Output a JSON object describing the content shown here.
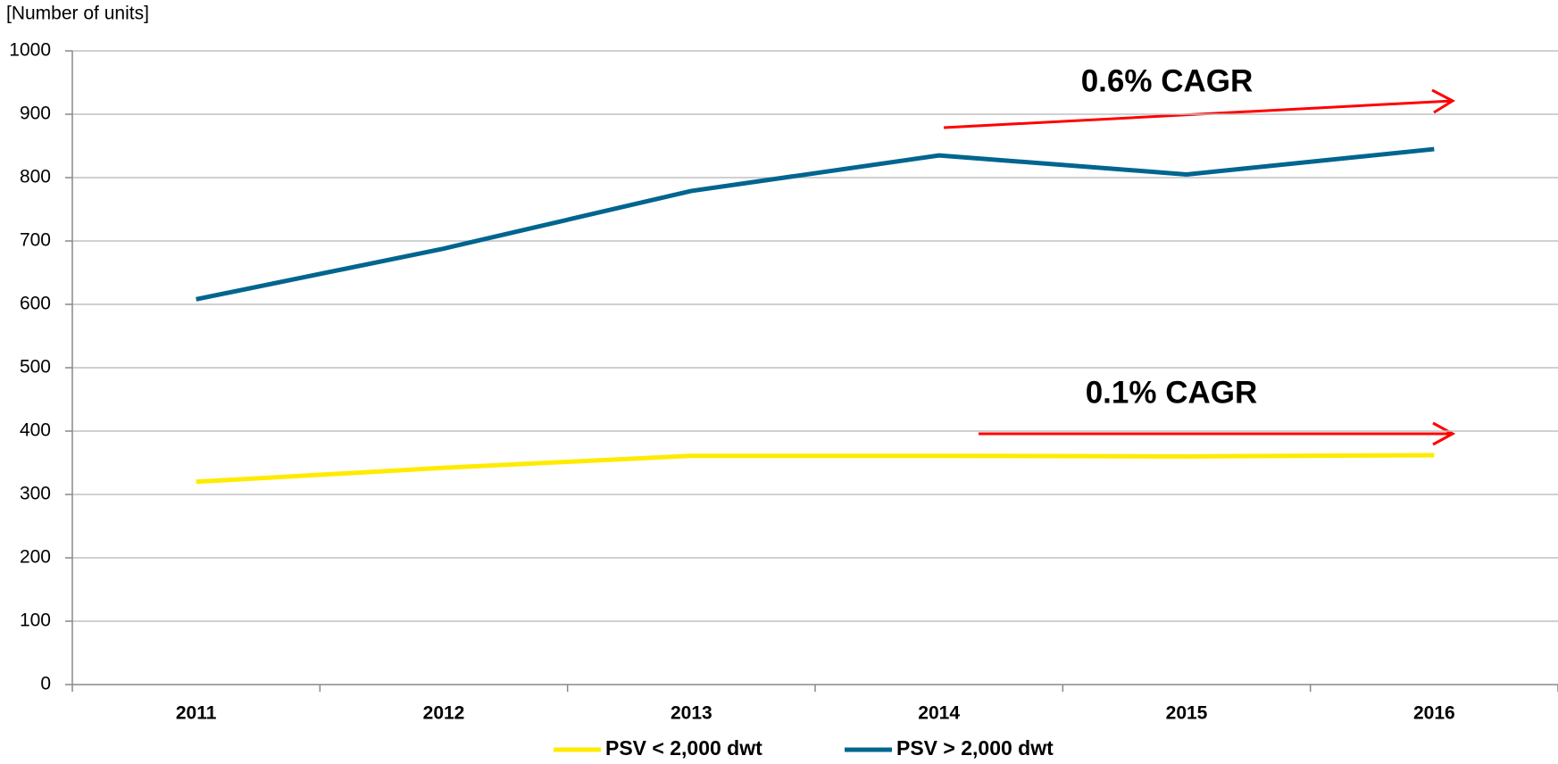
{
  "chart_data": {
    "type": "line",
    "y_label": "[Number of units]",
    "categories": [
      "2011",
      "2012",
      "2013",
      "2014",
      "2015",
      "2016"
    ],
    "series": [
      {
        "name": "PSV < 2,000 dwt",
        "color": "#ffeb00",
        "values": [
          320,
          342,
          361,
          361,
          360,
          362
        ]
      },
      {
        "name": "PSV > 2,000 dwt",
        "color": "#00658f",
        "values": [
          608,
          688,
          779,
          835,
          805,
          845
        ]
      }
    ],
    "ylim": [
      0,
      1000
    ],
    "yticks": [
      0,
      100,
      200,
      300,
      400,
      500,
      600,
      700,
      800,
      900,
      1000
    ],
    "grid": true,
    "annotations": [
      "0.6% CAGR",
      "0.1% CAGR"
    ]
  }
}
